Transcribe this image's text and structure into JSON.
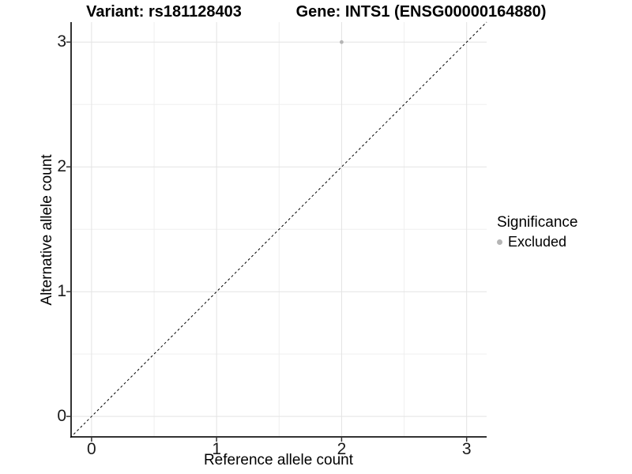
{
  "chart_data": {
    "type": "scatter",
    "titles": [
      "Variant: rs181128403",
      "Gene: INTS1 (ENSG00000164880)"
    ],
    "xlabel": "Reference allele count",
    "ylabel": "Alternative allele count",
    "xlim": [
      -0.17,
      3.16
    ],
    "ylim": [
      -0.17,
      3.16
    ],
    "x_ticks": [
      0,
      1,
      2,
      3
    ],
    "y_ticks": [
      0,
      1,
      2,
      3
    ],
    "x_minor_ticks": [
      0.5,
      1.5,
      2.5
    ],
    "y_minor_ticks": [
      0.5,
      1.5,
      2.5
    ],
    "grid": "major and minor gridlines, white background",
    "points": [
      {
        "x": 2,
        "y": 3,
        "significance": "Excluded"
      }
    ],
    "reference_line": {
      "type": "identity y=x",
      "style": "dashed",
      "from": [
        -0.17,
        -0.17
      ],
      "to": [
        3.16,
        3.16
      ]
    },
    "legend": {
      "title": "Significance",
      "position": "right",
      "entries": [
        {
          "label": "Excluded",
          "color": "#b5b5b5"
        }
      ]
    }
  },
  "colors": {
    "point": "#b5b5b5",
    "grid_major": "#e3e3e3",
    "grid_minor": "#efefef",
    "axis_line": "#333333",
    "reference_line": "#000000",
    "tick_mark": "#333333"
  }
}
